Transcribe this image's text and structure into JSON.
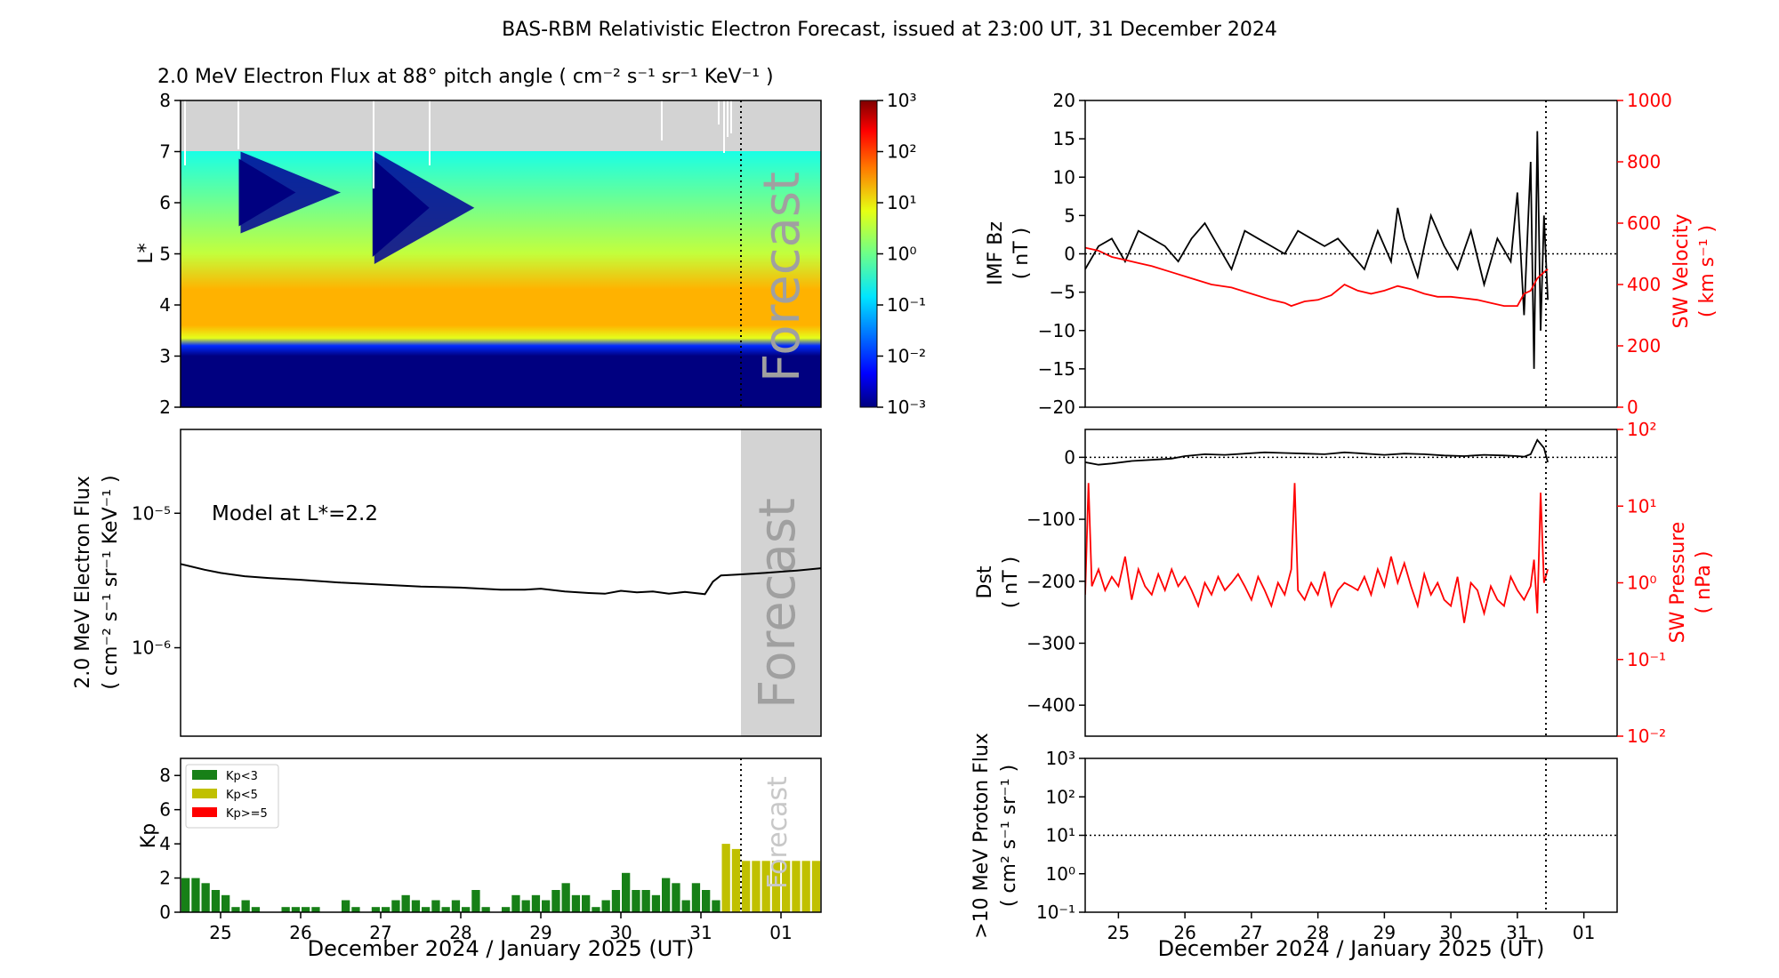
{
  "figure_title": "BAS-RBM Relativistic Electron Forecast, issued at 23:00 UT, 31 December 2024",
  "forecast_label": "Forecast",
  "colors": {
    "kp_low": "#178017",
    "kp_mid": "#c0c000",
    "kp_high": "#ff0000",
    "forecast_shade": "#d3d3d3",
    "fill_above": "#d3d3d3",
    "sw_red": "#ff0000",
    "dark_blue": "#000080"
  },
  "chart_data": [
    {
      "id": "flux_map",
      "type": "heatmap",
      "title": "2.0 MeV Electron Flux at 88° pitch angle ( cm⁻² s⁻¹ sr⁻¹ KeV⁻¹ )",
      "ylabel": "L*",
      "xlim": [
        24.5,
        32.5
      ],
      "ylim": [
        2,
        8
      ],
      "yticks": [
        "2",
        "3",
        "4",
        "5",
        "6",
        "7",
        "8"
      ],
      "forecast_start": 31.458,
      "data_upper_L": 7.0,
      "colorbar": {
        "scale": "log",
        "range": [
          0.001,
          1000
        ],
        "ticks": [
          "10⁻³",
          "10⁻²",
          "10⁻¹",
          "10⁰",
          "10¹",
          "10²",
          "10³"
        ]
      },
      "profile": [
        {
          "L": 2.0,
          "log_flux": -3.0
        },
        {
          "L": 3.0,
          "log_flux": -3.0
        },
        {
          "L": 3.2,
          "log_flux": -2.0
        },
        {
          "L": 3.35,
          "log_flux": 0.6
        },
        {
          "L": 3.6,
          "log_flux": 1.2
        },
        {
          "L": 4.3,
          "log_flux": 1.2
        },
        {
          "L": 5.0,
          "log_flux": 0.4
        },
        {
          "L": 5.8,
          "log_flux": 0.0
        },
        {
          "L": 7.0,
          "log_flux": -0.6
        }
      ],
      "dropouts": [
        {
          "day": 25.25,
          "L_low": 5.4,
          "L_high": 7.0
        },
        {
          "day": 26.92,
          "L_low": 4.8,
          "L_high": 7.0
        }
      ]
    },
    {
      "id": "model_flux",
      "type": "line",
      "annotation": "Model at L*=2.2",
      "ylabel": "2.0 MeV Electron Flux",
      "ylabel_units": "( cm⁻² s⁻¹ sr⁻¹ KeV⁻¹ )",
      "yscale": "log",
      "ylim": [
        2.2e-07,
        4.2e-05
      ],
      "yticks": [
        "10⁻⁵",
        "10⁻⁶"
      ],
      "xlim": [
        24.5,
        32.5
      ],
      "forecast_start": 31.458,
      "x": [
        24.5,
        24.8,
        25.0,
        25.3,
        25.6,
        26.0,
        26.5,
        27.0,
        27.5,
        28.0,
        28.5,
        28.8,
        29.0,
        29.3,
        29.6,
        29.8,
        30.0,
        30.2,
        30.4,
        30.6,
        30.8,
        31.05,
        31.15,
        31.25,
        31.458,
        31.8,
        32.2,
        32.5
      ],
      "y": [
        4.2e-06,
        3.8e-06,
        3.6e-06,
        3.4e-06,
        3.3e-06,
        3.2e-06,
        3.05e-06,
        2.95e-06,
        2.85e-06,
        2.8e-06,
        2.7e-06,
        2.7e-06,
        2.75e-06,
        2.62e-06,
        2.55e-06,
        2.52e-06,
        2.65e-06,
        2.58e-06,
        2.62e-06,
        2.52e-06,
        2.6e-06,
        2.5e-06,
        3.1e-06,
        3.45e-06,
        3.5e-06,
        3.6e-06,
        3.75e-06,
        3.9e-06
      ]
    },
    {
      "id": "kp",
      "type": "bar",
      "ylabel": "Kp",
      "xlabel": "December 2024 / January 2025 (UT)",
      "xlim": [
        24.5,
        32.5
      ],
      "ylim": [
        0,
        9
      ],
      "yticks": [
        "0",
        "2",
        "4",
        "6",
        "8"
      ],
      "xticks": [
        "25",
        "26",
        "27",
        "28",
        "29",
        "30",
        "31",
        "01"
      ],
      "forecast_start": 31.458,
      "legend": {
        "placement": "top-left",
        "entries": [
          "Kp<3",
          "Kp<5",
          "Kp>=5"
        ]
      },
      "start": 24.5,
      "bin_hours": 3,
      "values": [
        2.0,
        2.0,
        1.7,
        1.3,
        1.0,
        0.3,
        0.7,
        0.3,
        0.0,
        0.0,
        0.3,
        0.3,
        0.3,
        0.3,
        0.0,
        0.0,
        0.7,
        0.3,
        0.0,
        0.3,
        0.3,
        0.7,
        1.0,
        0.7,
        0.3,
        0.7,
        0.3,
        0.7,
        0.3,
        1.3,
        0.3,
        0.0,
        0.3,
        1.0,
        0.7,
        1.0,
        0.7,
        1.3,
        1.7,
        1.0,
        1.0,
        0.3,
        0.7,
        1.3,
        2.3,
        1.3,
        1.3,
        1.0,
        2.0,
        1.7,
        0.7,
        1.7,
        1.3,
        0.7,
        4.0,
        3.7,
        3.0,
        3.0,
        3.0,
        3.0,
        3.0,
        3.0,
        3.0,
        3.0
      ]
    },
    {
      "id": "imf_sw",
      "type": "line",
      "ylabel": "IMF Bz",
      "ylabel_units": "( nT )",
      "ylim": [
        -20,
        20
      ],
      "yticks": [
        "20",
        "15",
        "10",
        "5",
        "0",
        "−5",
        "−10",
        "−15",
        "−20"
      ],
      "y2label": "SW Velocity",
      "y2label_units": "( km s⁻¹ )",
      "y2lim": [
        0,
        1000
      ],
      "y2ticks": [
        "1000",
        "800",
        "600",
        "400",
        "200",
        "0"
      ],
      "xlim": [
        24.5,
        32.5
      ],
      "now": 31.458,
      "reference_line": 0,
      "series": [
        {
          "label": "IMF Bz",
          "color": "#000000",
          "x": [
            24.5,
            24.7,
            24.9,
            25.1,
            25.3,
            25.5,
            25.7,
            25.9,
            26.1,
            26.3,
            26.5,
            26.7,
            26.9,
            27.1,
            27.3,
            27.5,
            27.7,
            27.9,
            28.1,
            28.3,
            28.5,
            28.7,
            28.9,
            29.1,
            29.2,
            29.3,
            29.5,
            29.7,
            29.9,
            30.1,
            30.3,
            30.5,
            30.7,
            30.9,
            31.0,
            31.1,
            31.2,
            31.25,
            31.3,
            31.35,
            31.4,
            31.458
          ],
          "y": [
            -2,
            1,
            2,
            -1,
            3,
            2,
            1,
            -1,
            2,
            4,
            1,
            -2,
            3,
            2,
            1,
            0,
            3,
            2,
            1,
            2,
            0,
            -2,
            3,
            -1,
            6,
            2,
            -3,
            5,
            1,
            -2,
            3,
            -4,
            2,
            -1,
            8,
            -8,
            12,
            -15,
            16,
            -10,
            5,
            -6
          ]
        },
        {
          "label": "SW Velocity",
          "color": "#ff0000",
          "axis": "right",
          "x": [
            24.5,
            24.7,
            24.9,
            25.1,
            25.3,
            25.5,
            25.8,
            26.1,
            26.4,
            26.7,
            27.0,
            27.3,
            27.5,
            27.6,
            27.8,
            28.0,
            28.2,
            28.4,
            28.6,
            28.8,
            29.0,
            29.2,
            29.4,
            29.6,
            29.8,
            30.0,
            30.2,
            30.4,
            30.6,
            30.8,
            31.0,
            31.1,
            31.2,
            31.3,
            31.4,
            31.458
          ],
          "y": [
            520,
            510,
            490,
            480,
            470,
            460,
            440,
            420,
            400,
            390,
            370,
            350,
            340,
            330,
            345,
            350,
            365,
            400,
            380,
            370,
            380,
            395,
            385,
            370,
            360,
            360,
            355,
            350,
            340,
            330,
            330,
            370,
            380,
            420,
            440,
            450
          ]
        }
      ]
    },
    {
      "id": "dst_pressure",
      "type": "line",
      "ylabel": "Dst",
      "ylabel_units": "( nT )",
      "ylim": [
        -450,
        45
      ],
      "yticks": [
        "0",
        "−100",
        "−200",
        "−300",
        "−400"
      ],
      "y2label": "SW Pressure",
      "y2label_units": "( nPa )",
      "y2scale": "log",
      "y2lim": [
        0.01,
        100
      ],
      "y2ticks": [
        "10²",
        "10¹",
        "10⁰",
        "10⁻¹",
        "10⁻²"
      ],
      "xlim": [
        24.5,
        32.5
      ],
      "now": 31.458,
      "reference_line": 0,
      "series": [
        {
          "label": "Dst",
          "color": "#000000",
          "x": [
            24.5,
            24.7,
            24.9,
            25.2,
            25.5,
            25.8,
            26.0,
            26.3,
            26.6,
            26.9,
            27.2,
            27.5,
            27.8,
            28.1,
            28.4,
            28.7,
            29.0,
            29.3,
            29.6,
            29.9,
            30.2,
            30.5,
            30.8,
            31.0,
            31.1,
            31.2,
            31.3,
            31.4,
            31.458
          ],
          "y": [
            -8,
            -12,
            -10,
            -6,
            -4,
            -2,
            2,
            5,
            4,
            6,
            8,
            7,
            6,
            5,
            8,
            6,
            4,
            6,
            5,
            3,
            2,
            4,
            3,
            2,
            1,
            5,
            28,
            15,
            -8
          ]
        },
        {
          "label": "SW Pressure",
          "color": "#ff0000",
          "axis": "right",
          "x": [
            24.5,
            24.55,
            24.6,
            24.7,
            24.8,
            24.9,
            25.0,
            25.1,
            25.2,
            25.3,
            25.4,
            25.5,
            25.6,
            25.7,
            25.8,
            25.9,
            26.0,
            26.1,
            26.2,
            26.3,
            26.4,
            26.5,
            26.6,
            26.7,
            26.8,
            26.9,
            27.0,
            27.1,
            27.2,
            27.3,
            27.4,
            27.5,
            27.6,
            27.65,
            27.7,
            27.8,
            27.9,
            28.0,
            28.1,
            28.2,
            28.3,
            28.4,
            28.5,
            28.6,
            28.7,
            28.8,
            28.9,
            29.0,
            29.1,
            29.2,
            29.3,
            29.4,
            29.5,
            29.6,
            29.7,
            29.8,
            29.9,
            30.0,
            30.1,
            30.2,
            30.3,
            30.4,
            30.5,
            30.6,
            30.7,
            30.8,
            30.9,
            31.0,
            31.1,
            31.2,
            31.25,
            31.3,
            31.35,
            31.4,
            31.458
          ],
          "y": [
            0.7,
            20,
            0.9,
            1.5,
            0.8,
            1.2,
            0.9,
            2.2,
            0.6,
            1.5,
            0.9,
            0.7,
            1.3,
            0.8,
            1.5,
            0.9,
            1.2,
            0.8,
            0.5,
            1.0,
            0.7,
            1.2,
            0.8,
            1.0,
            1.3,
            0.9,
            0.6,
            1.2,
            0.8,
            0.5,
            1.0,
            0.7,
            1.5,
            20,
            0.8,
            0.6,
            1.0,
            0.7,
            1.4,
            0.5,
            0.8,
            1.0,
            0.9,
            0.8,
            1.2,
            0.7,
            1.5,
            0.9,
            2.2,
            1.0,
            1.8,
            0.9,
            0.5,
            1.3,
            0.7,
            1.0,
            0.6,
            0.5,
            1.2,
            0.3,
            1.0,
            0.8,
            0.4,
            0.9,
            0.6,
            0.5,
            1.2,
            0.8,
            0.6,
            0.9,
            2.0,
            0.4,
            15,
            1.0,
            1.5
          ]
        }
      ]
    },
    {
      "id": "proton_flux",
      "type": "line",
      "ylabel": ">10 MeV Proton Flux",
      "ylabel_units": "( cm² s⁻¹ sr⁻¹ )",
      "yscale": "log",
      "ylim": [
        0.1,
        1000
      ],
      "yticks": [
        "10³",
        "10²",
        "10¹",
        "10⁰",
        "10⁻¹"
      ],
      "xlabel": "December 2024 / January 2025 (UT)",
      "xlim": [
        24.5,
        32.5
      ],
      "xticks": [
        "25",
        "26",
        "27",
        "28",
        "29",
        "30",
        "31",
        "01"
      ],
      "now": 31.458,
      "threshold": 10
    }
  ]
}
